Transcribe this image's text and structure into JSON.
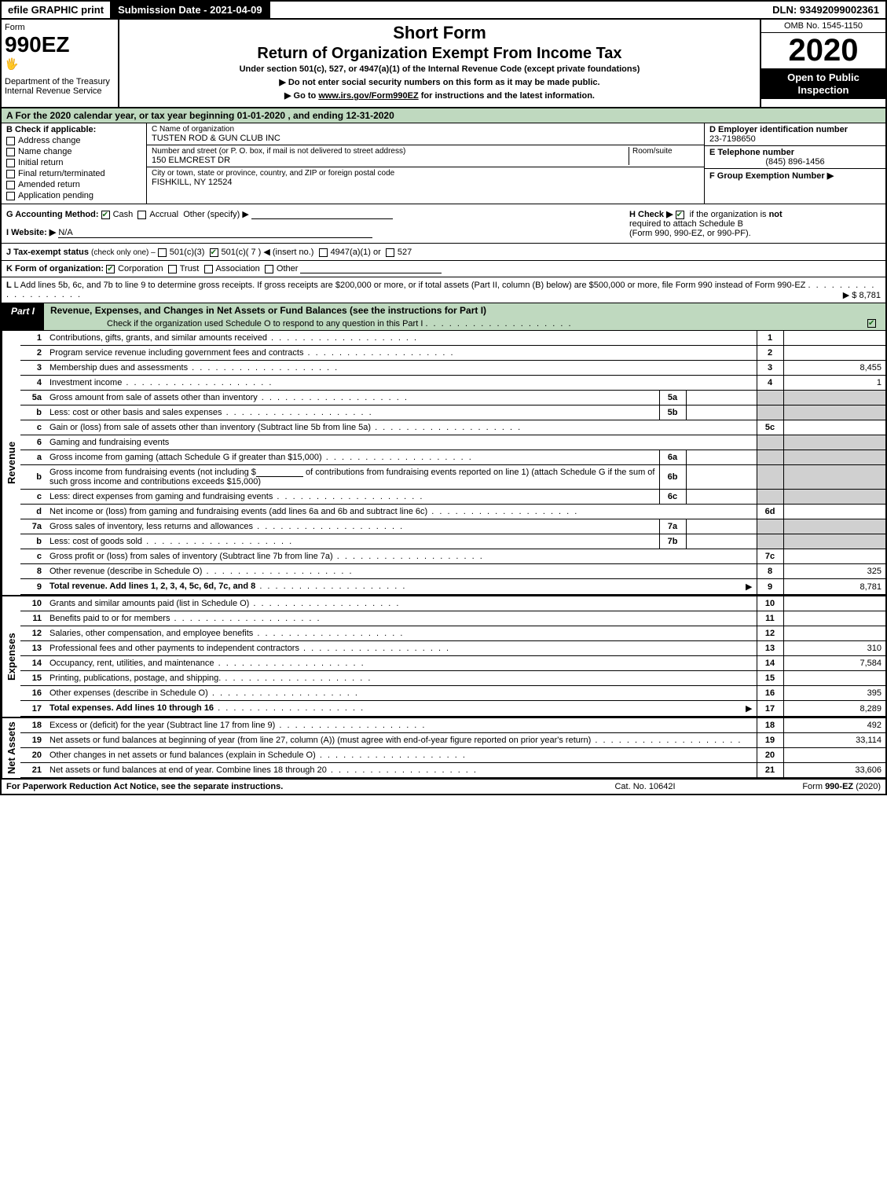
{
  "topbar": {
    "efile": "efile GRAPHIC print",
    "submission": "Submission Date - 2021-04-09",
    "dln": "DLN: 93492099002361"
  },
  "header": {
    "form_label": "Form",
    "form_number": "990EZ",
    "dept": "Department of the Treasury",
    "irs": "Internal Revenue Service",
    "short_form": "Short Form",
    "return_title": "Return of Organization Exempt From Income Tax",
    "subtitle": "Under section 501(c), 527, or 4947(a)(1) of the Internal Revenue Code (except private foundations)",
    "arrow1": "▶ Do not enter social security numbers on this form as it may be made public.",
    "arrow2_pre": "▶ Go to ",
    "arrow2_link": "www.irs.gov/Form990EZ",
    "arrow2_post": " for instructions and the latest information.",
    "omb": "OMB No. 1545-1150",
    "year": "2020",
    "inspect": "Open to Public Inspection"
  },
  "period": "A For the 2020 calendar year, or tax year beginning 01-01-2020 , and ending 12-31-2020",
  "colB": {
    "label": "B Check if applicable:",
    "items": [
      "Address change",
      "Name change",
      "Initial return",
      "Final return/terminated",
      "Amended return",
      "Application pending"
    ]
  },
  "colC": {
    "name_hint": "C Name of organization",
    "name": "TUSTEN ROD & GUN CLUB INC",
    "street_hint": "Number and street (or P. O. box, if mail is not delivered to street address)",
    "room_hint": "Room/suite",
    "street": "150 ELMCREST DR",
    "city_hint": "City or town, state or province, country, and ZIP or foreign postal code",
    "city": "FISHKILL, NY  12524"
  },
  "colD": {
    "ein_label": "D Employer identification number",
    "ein": "23-7198650",
    "tel_label": "E Telephone number",
    "tel": "(845) 896-1456",
    "group_label": "F Group Exemption Number  ▶"
  },
  "rowG": {
    "label": "G Accounting Method:",
    "cash": "Cash",
    "accrual": "Accrual",
    "other": "Other (specify) ▶"
  },
  "rowH": {
    "label": "H  Check ▶",
    "text1": "if the organization is ",
    "not": "not",
    "text2": " required to attach Schedule B",
    "text3": "(Form 990, 990-EZ, or 990-PF)."
  },
  "rowI": {
    "label": "I Website: ▶",
    "value": "N/A"
  },
  "rowJ": {
    "label": "J Tax-exempt status",
    "hint": "(check only one) –",
    "opt1": "501(c)(3)",
    "opt2": "501(c)( 7 ) ◀ (insert no.)",
    "opt3": "4947(a)(1) or",
    "opt4": "527"
  },
  "rowK": {
    "label": "K Form of organization:",
    "opts": [
      "Corporation",
      "Trust",
      "Association",
      "Other"
    ]
  },
  "rowL": {
    "text": "L Add lines 5b, 6c, and 7b to line 9 to determine gross receipts. If gross receipts are $200,000 or more, or if total assets (Part II, column (B) below) are $500,000 or more, file Form 990 instead of Form 990-EZ",
    "amount": "▶ $ 8,781"
  },
  "part1": {
    "label": "Part I",
    "title": "Revenue, Expenses, and Changes in Net Assets or Fund Balances (see the instructions for Part I)",
    "sub": "Check if the organization used Schedule O to respond to any question in this Part I"
  },
  "vtabs": {
    "revenue": "Revenue",
    "expenses": "Expenses",
    "netassets": "Net Assets"
  },
  "revenue_lines": [
    {
      "n": "1",
      "desc": "Contributions, gifts, grants, and similar amounts received",
      "idx": "1",
      "amt": ""
    },
    {
      "n": "2",
      "desc": "Program service revenue including government fees and contracts",
      "idx": "2",
      "amt": ""
    },
    {
      "n": "3",
      "desc": "Membership dues and assessments",
      "idx": "3",
      "amt": "8,455"
    },
    {
      "n": "4",
      "desc": "Investment income",
      "idx": "4",
      "amt": "1"
    }
  ],
  "rev5": {
    "a_desc": "Gross amount from sale of assets other than inventory",
    "a_n": "5a",
    "b_desc": "Less: cost or other basis and sales expenses",
    "b_n": "5b",
    "c_desc": "Gain or (loss) from sale of assets other than inventory (Subtract line 5b from line 5a)",
    "c_idx": "5c"
  },
  "rev6": {
    "hdr": "Gaming and fundraising events",
    "a_desc": "Gross income from gaming (attach Schedule G if greater than $15,000)",
    "a_n": "6a",
    "b_desc_pre": "Gross income from fundraising events (not including $",
    "b_desc_mid": " of contributions from fundraising events reported on line 1) (attach Schedule G if the sum of such gross income and contributions exceeds $15,000)",
    "b_n": "6b",
    "c_desc": "Less: direct expenses from gaming and fundraising events",
    "c_n": "6c",
    "d_desc": "Net income or (loss) from gaming and fundraising events (add lines 6a and 6b and subtract line 6c)",
    "d_idx": "6d"
  },
  "rev7": {
    "a_desc": "Gross sales of inventory, less returns and allowances",
    "a_n": "7a",
    "b_desc": "Less: cost of goods sold",
    "b_n": "7b",
    "c_desc": "Gross profit or (loss) from sales of inventory (Subtract line 7b from line 7a)",
    "c_idx": "7c"
  },
  "rev89": [
    {
      "n": "8",
      "desc": "Other revenue (describe in Schedule O)",
      "idx": "8",
      "amt": "325"
    },
    {
      "n": "9",
      "desc": "Total revenue. Add lines 1, 2, 3, 4, 5c, 6d, 7c, and 8",
      "idx": "9",
      "amt": "8,781",
      "bold": true,
      "arrow": true
    }
  ],
  "expense_lines": [
    {
      "n": "10",
      "desc": "Grants and similar amounts paid (list in Schedule O)",
      "idx": "10",
      "amt": ""
    },
    {
      "n": "11",
      "desc": "Benefits paid to or for members",
      "idx": "11",
      "amt": ""
    },
    {
      "n": "12",
      "desc": "Salaries, other compensation, and employee benefits",
      "idx": "12",
      "amt": ""
    },
    {
      "n": "13",
      "desc": "Professional fees and other payments to independent contractors",
      "idx": "13",
      "amt": "310"
    },
    {
      "n": "14",
      "desc": "Occupancy, rent, utilities, and maintenance",
      "idx": "14",
      "amt": "7,584"
    },
    {
      "n": "15",
      "desc": "Printing, publications, postage, and shipping.",
      "idx": "15",
      "amt": ""
    },
    {
      "n": "16",
      "desc": "Other expenses (describe in Schedule O)",
      "idx": "16",
      "amt": "395"
    },
    {
      "n": "17",
      "desc": "Total expenses. Add lines 10 through 16",
      "idx": "17",
      "amt": "8,289",
      "bold": true,
      "arrow": true
    }
  ],
  "netasset_lines": [
    {
      "n": "18",
      "desc": "Excess or (deficit) for the year (Subtract line 17 from line 9)",
      "idx": "18",
      "amt": "492"
    },
    {
      "n": "19",
      "desc": "Net assets or fund balances at beginning of year (from line 27, column (A)) (must agree with end-of-year figure reported on prior year's return)",
      "idx": "19",
      "amt": "33,114",
      "tall": true
    },
    {
      "n": "20",
      "desc": "Other changes in net assets or fund balances (explain in Schedule O)",
      "idx": "20",
      "amt": ""
    },
    {
      "n": "21",
      "desc": "Net assets or fund balances at end of year. Combine lines 18 through 20",
      "idx": "21",
      "amt": "33,606"
    }
  ],
  "footer": {
    "left": "For Paperwork Reduction Act Notice, see the separate instructions.",
    "mid": "Cat. No. 10642I",
    "right": "Form 990-EZ (2020)"
  },
  "colors": {
    "green_bg": "#bfd9bf",
    "shade": "#d0d0d0",
    "check_color": "#1a6b1a"
  }
}
